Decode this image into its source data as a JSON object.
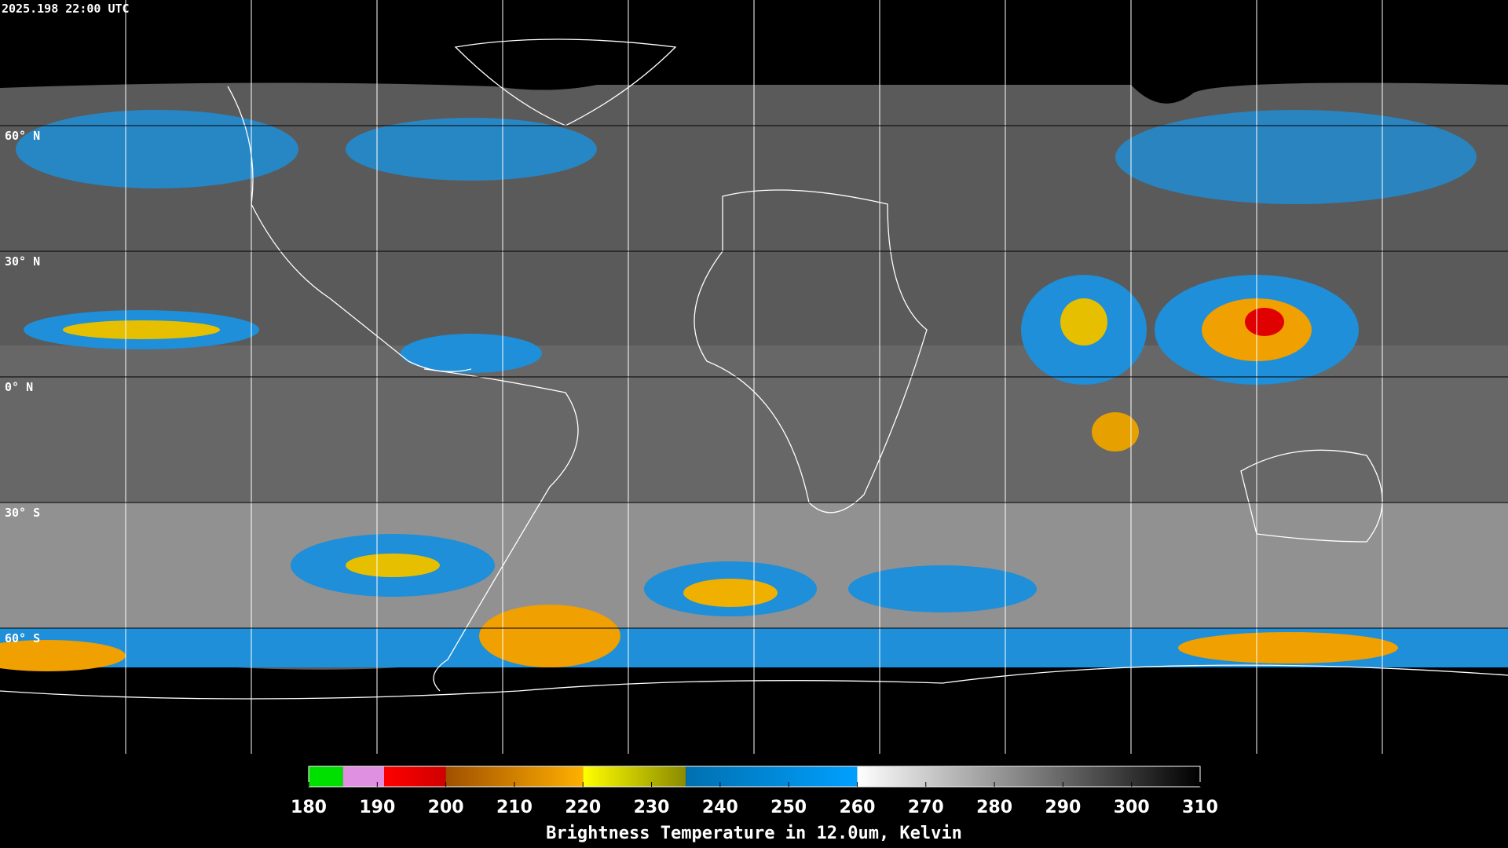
{
  "header": {
    "timestamp": "2025.198 22:00 UTC"
  },
  "map": {
    "latitude_labels": [
      "60° N",
      "30° N",
      "0° N",
      "30° S",
      "60° S"
    ]
  },
  "colorbar": {
    "title": "Brightness Temperature in 12.0um, Kelvin",
    "lim": [
      180,
      310
    ],
    "ticks": [
      180,
      190,
      200,
      210,
      220,
      230,
      240,
      250,
      260,
      270,
      280,
      290,
      300,
      310
    ],
    "segments": [
      {
        "range": [
          180,
          185
        ],
        "colors": [
          "#00e000",
          "#00e000"
        ]
      },
      {
        "range": [
          185,
          191
        ],
        "colors": [
          "#e090e0",
          "#e090e0"
        ]
      },
      {
        "range": [
          191,
          200
        ],
        "colors": [
          "#ff0000",
          "#d00000"
        ]
      },
      {
        "range": [
          200,
          220
        ],
        "colors": [
          "#a05000",
          "#ffb000"
        ]
      },
      {
        "range": [
          220,
          235
        ],
        "colors": [
          "#ffff00",
          "#8a8a00"
        ]
      },
      {
        "range": [
          235,
          260
        ],
        "colors": [
          "#0070b0",
          "#00a0ff"
        ]
      },
      {
        "range": [
          260,
          310
        ],
        "colors": [
          "#ffffff",
          "#000000"
        ]
      }
    ]
  }
}
